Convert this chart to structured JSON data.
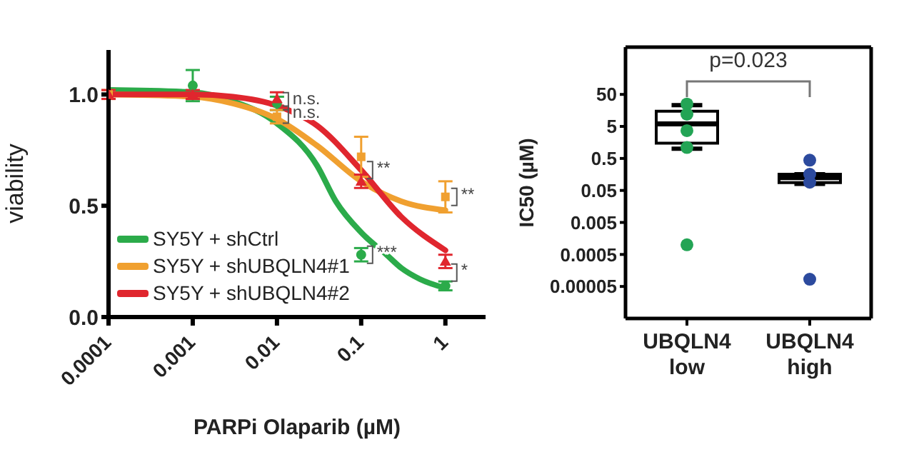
{
  "chart_data": [
    {
      "type": "line",
      "xlabel": "PARPi Olaparib (µM)",
      "ylabel": "viability",
      "log": "x",
      "xlim": [
        0.0001,
        3
      ],
      "xticks": [
        0.0001,
        0.001,
        0.01,
        0.1,
        1
      ],
      "ylim": [
        0,
        1.2
      ],
      "yticks": [
        {
          "value": 0,
          "label": "0.0"
        },
        {
          "value": 0.5,
          "label": "0.5"
        },
        {
          "value": 1,
          "label": "1.0"
        }
      ],
      "legend": "bottom left",
      "series": [
        {
          "name": "SY5Y + shCtrl",
          "color": "#2bab4a",
          "x": [
            0.0001,
            0.001,
            0.003,
            0.01,
            0.03,
            0.05,
            0.1,
            0.2,
            0.3,
            0.5,
            1
          ],
          "values": [
            1.02,
            1.01,
            0.97,
            0.87,
            0.68,
            0.52,
            0.38,
            0.28,
            0.22,
            0.17,
            0.13
          ]
        },
        {
          "name": "SY5Y + shUBQLN4#1",
          "color": "#f0a030",
          "x": [
            0.0001,
            0.001,
            0.003,
            0.01,
            0.03,
            0.1,
            0.3,
            1
          ],
          "values": [
            1.0,
            0.99,
            0.96,
            0.89,
            0.77,
            0.61,
            0.52,
            0.48
          ]
        },
        {
          "name": "SY5Y + shUBQLN4#2",
          "color": "#e0262e",
          "x": [
            0.0001,
            0.001,
            0.003,
            0.01,
            0.03,
            0.1,
            0.3,
            1
          ],
          "values": [
            1.0,
            1.0,
            0.99,
            0.95,
            0.86,
            0.66,
            0.45,
            0.3
          ]
        },
        {
          "type": "scatter",
          "marker": "circle",
          "color": "#2bab4a",
          "x": [
            0.001,
            0.01,
            0.1,
            1
          ],
          "values": [
            1.04,
            0.96,
            0.28,
            0.14
          ],
          "errors": [
            0.07,
            0.03,
            0.03,
            0.02
          ]
        },
        {
          "type": "scatter",
          "marker": "square",
          "color": "#f0a030",
          "x": [
            0.0001,
            0.01,
            0.1,
            1
          ],
          "values": [
            1.0,
            0.9,
            0.72,
            0.54
          ],
          "errors": [
            0.02,
            0.03,
            0.09,
            0.07
          ]
        },
        {
          "type": "scatter",
          "marker": "triangle",
          "color": "#e0262e",
          "x": [
            0.0001,
            0.001,
            0.01,
            0.1,
            1
          ],
          "values": [
            1.0,
            1.0,
            0.98,
            0.61,
            0.25
          ],
          "errors": [
            0.02,
            0.02,
            0.03,
            0.03,
            0.03
          ]
        }
      ],
      "annotations": [
        {
          "text": "n.s.",
          "x": 0.01,
          "y": 0.97
        },
        {
          "text": "n.s.",
          "x": 0.01,
          "y": 0.91
        },
        {
          "text": "**",
          "x": 0.1,
          "y": 0.66
        },
        {
          "text": "***",
          "x": 0.1,
          "y": 0.28
        },
        {
          "text": "**",
          "x": 1,
          "y": 0.54
        },
        {
          "text": "*",
          "x": 1,
          "y": 0.2
        }
      ]
    },
    {
      "type": "box",
      "ylabel": "IC50 (µM)",
      "log": "y",
      "ylim": [
        5e-06,
        1500
      ],
      "yticks": [
        {
          "value": 5e-05,
          "label": "0.00005"
        },
        0.0005,
        0.005,
        0.05,
        0.5,
        5,
        50
      ],
      "categories": [
        "UBQLN4 low",
        "UBQLN4 high"
      ],
      "color": "#000000",
      "boxes": [
        {
          "low": 1,
          "q1": 1.5,
          "median": 6,
          "q3": 15,
          "high": 23
        },
        {
          "low": 0.08,
          "q1": 0.088,
          "median": 0.125,
          "q3": 0.16,
          "high": 0.16
        }
      ],
      "series": [
        {
          "type": "scatter",
          "color": "#23a455",
          "x": [
            "UBQLN4 low",
            "UBQLN4 low",
            "UBQLN4 low",
            "UBQLN4 low",
            "UBQLN4 low"
          ],
          "values": [
            25,
            12,
            3.7,
            1.1,
            0.001
          ]
        },
        {
          "type": "scatter",
          "color": "#2c4a9e",
          "x": [
            "UBQLN4 high",
            "UBQLN4 high",
            "UBQLN4 high",
            "UBQLN4 high"
          ],
          "values": [
            0.44,
            0.16,
            0.09,
            8.4e-05
          ]
        }
      ],
      "annotations": [
        "p=0.023"
      ]
    }
  ]
}
